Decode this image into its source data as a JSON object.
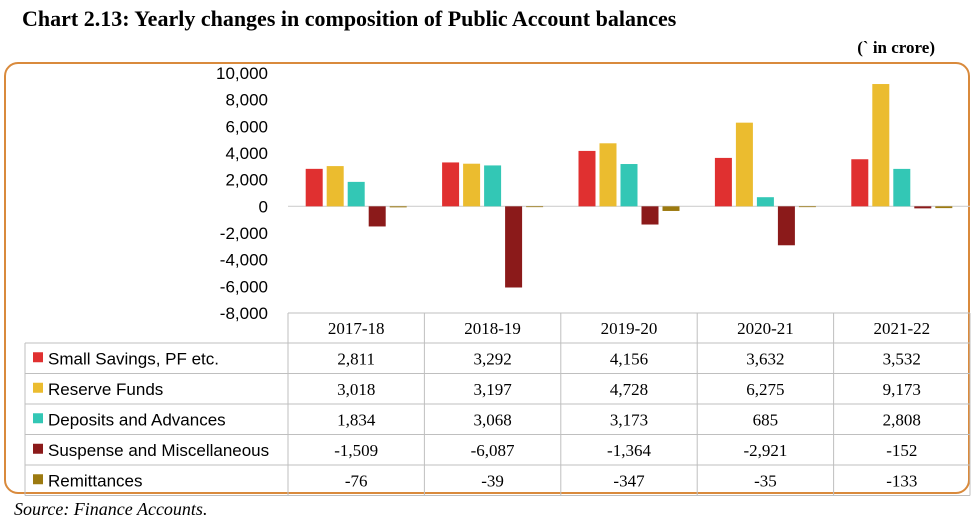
{
  "header": {
    "title": "Chart 2.13: Yearly changes in composition of Public Account balances",
    "unit": "(` in crore)"
  },
  "footer": {
    "source": "Source: Finance Accounts."
  },
  "chart_data": {
    "type": "bar",
    "title": "Chart 2.13: Yearly changes in composition of Public Account balances",
    "unit": "(` in crore)",
    "categories": [
      "2017-18",
      "2018-19",
      "2019-20",
      "2020-21",
      "2021-22"
    ],
    "ylim": [
      -8000,
      10000
    ],
    "yticks": [
      -8000,
      -6000,
      -4000,
      -2000,
      0,
      2000,
      4000,
      6000,
      8000,
      10000
    ],
    "ytick_labels": [
      "-8,000",
      "-6,000",
      "-4,000",
      "-2,000",
      "0",
      "2,000",
      "4,000",
      "6,000",
      "8,000",
      "10,000"
    ],
    "grid": false,
    "legend": "data-table",
    "series": [
      {
        "name": "Small Savings, PF etc.",
        "color": "#e03030",
        "values": [
          2811,
          3292,
          4156,
          3632,
          3532
        ],
        "labels": [
          "2,811",
          "3,292",
          "4,156",
          "3,632",
          "3,532"
        ]
      },
      {
        "name": "Reserve Funds",
        "color": "#ebbc2f",
        "values": [
          3018,
          3197,
          4728,
          6275,
          9173
        ],
        "labels": [
          "3,018",
          "3,197",
          "4,728",
          "6,275",
          "9,173"
        ]
      },
      {
        "name": "Deposits and Advances",
        "color": "#33c7b5",
        "values": [
          1834,
          3068,
          3173,
          685,
          2808
        ],
        "labels": [
          "1,834",
          "3,068",
          "3,173",
          "685",
          "2,808"
        ]
      },
      {
        "name": "Suspense and Miscellaneous",
        "color": "#8b1a1a",
        "values": [
          -1509,
          -6087,
          -1364,
          -2921,
          -152
        ],
        "labels": [
          "-1,509",
          "-6,087",
          "-1,364",
          "-2,921",
          "-152"
        ]
      },
      {
        "name": "Remittances",
        "color": "#9c7a10",
        "values": [
          -76,
          -39,
          -347,
          -35,
          -133
        ],
        "labels": [
          "-76",
          "-39",
          "-347",
          "-35",
          "-133"
        ]
      }
    ]
  }
}
